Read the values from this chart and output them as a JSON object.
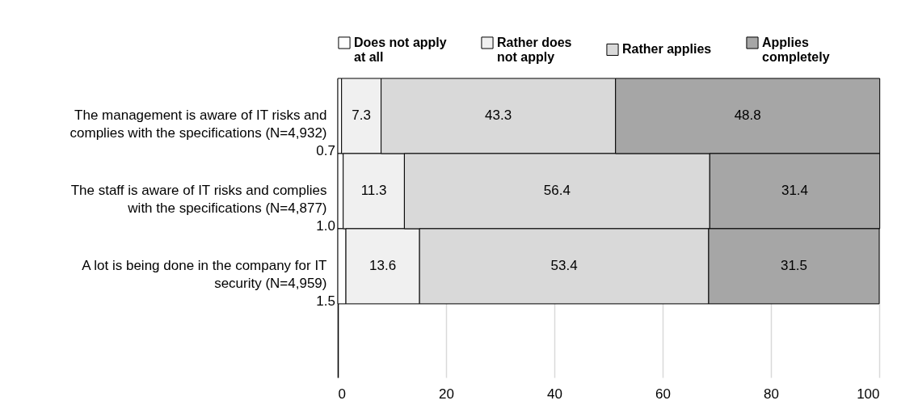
{
  "chart_data": {
    "type": "bar",
    "orientation": "horizontal",
    "stacked": true,
    "categories": [
      "The management is aware of IT risks and complies with the specifications (N=4,932)",
      "The staff is aware of IT risks and complies with the specifications (N=4,877)",
      "A lot is being done in the company for IT security (N=4,959)"
    ],
    "series": [
      {
        "name": "Does not apply at all",
        "color": "#ffffff",
        "values": [
          0.7,
          1.0,
          1.5
        ],
        "value_labels": [
          "0.7",
          "1.0",
          "1.5"
        ]
      },
      {
        "name": "Rather does not apply",
        "color": "#f0f0f0",
        "values": [
          7.3,
          11.3,
          13.6
        ]
      },
      {
        "name": "Rather applies",
        "color": "#d9d9d9",
        "values": [
          43.3,
          56.4,
          53.4
        ]
      },
      {
        "name": "Applies completely",
        "color": "#a6a6a6",
        "values": [
          48.8,
          31.4,
          31.5
        ]
      }
    ],
    "xlim": [
      0,
      100
    ],
    "xticks": [
      0,
      20,
      40,
      60,
      80,
      100
    ],
    "grid": "x",
    "legend": "top",
    "data_labels": true
  }
}
